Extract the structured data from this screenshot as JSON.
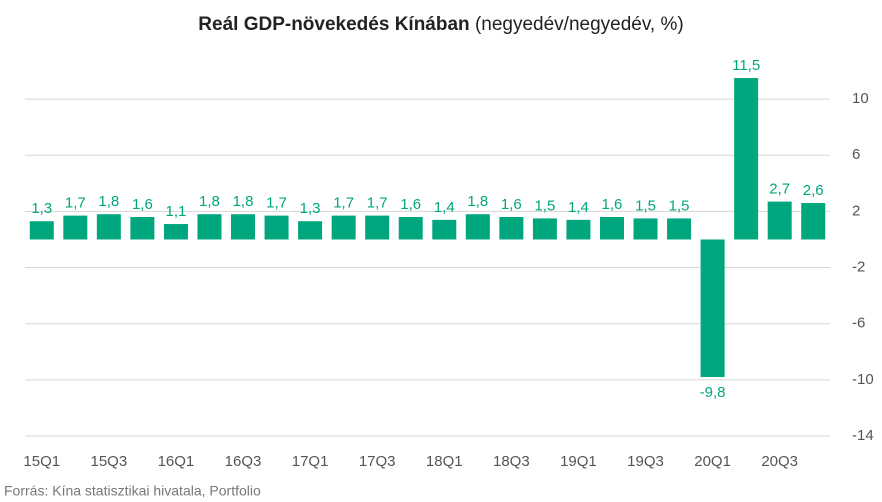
{
  "chart_data": {
    "type": "bar",
    "title": "Reál GDP-növekedés Kínában",
    "subtitle": "(negyedév/negyedév, %)",
    "source": "Forrás: Kína statisztikai hivatala, Portfolio",
    "categories": [
      "15Q1",
      null,
      "15Q3",
      null,
      "16Q1",
      null,
      "16Q3",
      null,
      "17Q1",
      null,
      "17Q3",
      null,
      "18Q1",
      null,
      "18Q3",
      null,
      "19Q1",
      null,
      "19Q3",
      null,
      "20Q1",
      null,
      "20Q3",
      null
    ],
    "values": [
      1.3,
      1.7,
      1.8,
      1.6,
      1.1,
      1.8,
      1.8,
      1.7,
      1.3,
      1.7,
      1.7,
      1.6,
      1.4,
      1.8,
      1.6,
      1.5,
      1.4,
      1.6,
      1.5,
      1.5,
      -9.8,
      11.5,
      2.7,
      2.6
    ],
    "value_labels": [
      "1,3",
      "1,7",
      "1,8",
      "1,6",
      "1,1",
      "1,8",
      "1,8",
      "1,7",
      "1,3",
      "1,7",
      "1,7",
      "1,6",
      "1,4",
      "1,8",
      "1,6",
      "1,5",
      "1,4",
      "1,6",
      "1,5",
      "1,5",
      "-9,8",
      "11,5",
      "2,7",
      "2,6"
    ],
    "color": "#00a67e",
    "ylim": [
      -14,
      13
    ],
    "yticks": [
      10,
      6,
      2,
      -2,
      -6,
      -10,
      -14
    ],
    "grid": true
  }
}
